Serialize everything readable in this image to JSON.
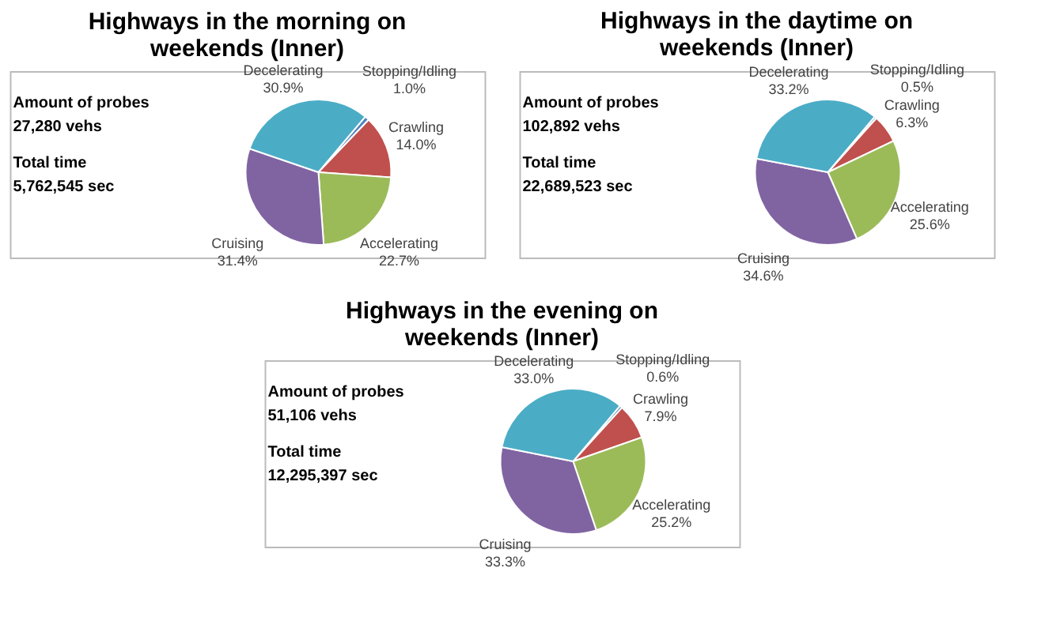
{
  "chart_data": [
    {
      "type": "pie",
      "title": "Highways in the morning on weekends (Inner)",
      "categories": [
        "Stopping/Idling",
        "Crawling",
        "Accelerating",
        "Cruising",
        "Decelerating"
      ],
      "values": [
        1.0,
        14.0,
        22.7,
        31.4,
        30.9
      ],
      "colors": [
        "#4f81bd",
        "#c0504d",
        "#9bbb59",
        "#8064a2",
        "#4bacc6"
      ],
      "value_labels": [
        "1.0%",
        "14.0%",
        "22.7%",
        "31.4%",
        "30.9%"
      ],
      "annotations": [
        "Amount of probes",
        "27,280 vehs",
        "Total time",
        "5,762,545 sec"
      ]
    },
    {
      "type": "pie",
      "title": "Highways in the daytime on weekends (Inner)",
      "categories": [
        "Stopping/Idling",
        "Crawling",
        "Accelerating",
        "Cruising",
        "Decelerating"
      ],
      "values": [
        0.5,
        6.3,
        25.6,
        34.6,
        33.2
      ],
      "colors": [
        "#4f81bd",
        "#c0504d",
        "#9bbb59",
        "#8064a2",
        "#4bacc6"
      ],
      "value_labels": [
        "0.5%",
        "6.3%",
        "25.6%",
        "34.6%",
        "33.2%"
      ],
      "annotations": [
        "Amount of probes",
        "102,892 vehs",
        "Total time",
        "22,689,523 sec"
      ]
    },
    {
      "type": "pie",
      "title": "Highways in the evening on weekends (Inner)",
      "categories": [
        "Stopping/Idling",
        "Crawling",
        "Accelerating",
        "Cruising",
        "Decelerating"
      ],
      "values": [
        0.6,
        7.9,
        25.2,
        33.3,
        33.0
      ],
      "colors": [
        "#4f81bd",
        "#c0504d",
        "#9bbb59",
        "#8064a2",
        "#4bacc6"
      ],
      "value_labels": [
        "0.6%",
        "7.9%",
        "25.2%",
        "33.3%",
        "33.0%"
      ],
      "annotations": [
        "Amount of probes",
        "51,106 vehs",
        "Total time",
        "12,295,397 sec"
      ]
    }
  ]
}
